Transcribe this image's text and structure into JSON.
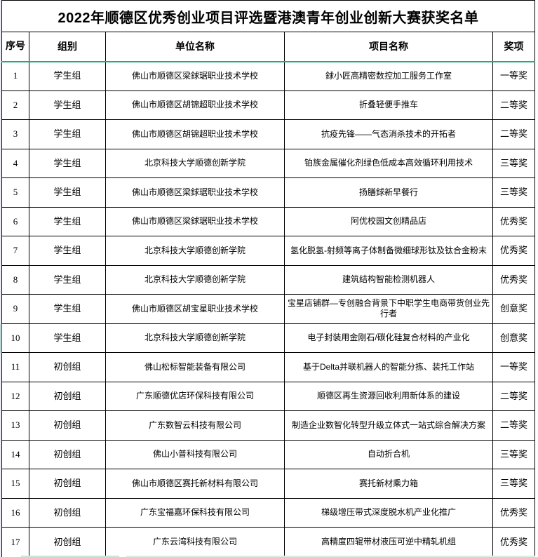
{
  "title": "2022年顺德区优秀创业项目评选暨港澳青年创业创新大赛获奖名单",
  "colors": {
    "freeze_line": "#25a87d",
    "border": "#000000"
  },
  "table": {
    "headers": {
      "no": "序号",
      "group": "组别",
      "unit": "单位名称",
      "project": "项目名称",
      "award": "奖项"
    },
    "rows": [
      {
        "no": "1",
        "group": "学生组",
        "unit": "佛山市顺德区梁銶琚职业技术学校",
        "project": "銶小匠高精密数控加工服务工作室",
        "award": "一等奖"
      },
      {
        "no": "2",
        "group": "学生组",
        "unit": "佛山市顺德区胡锦超职业技术学校",
        "project": "折叠轻便手推车",
        "award": "二等奖"
      },
      {
        "no": "3",
        "group": "学生组",
        "unit": "佛山市顺德区胡锦超职业技术学校",
        "project": "抗疫先锋——气态消杀技术的开拓者",
        "award": "二等奖"
      },
      {
        "no": "4",
        "group": "学生组",
        "unit": "北京科技大学顺德创新学院",
        "project": "铂族金属催化剂绿色低成本高效循环利用技术",
        "award": "三等奖"
      },
      {
        "no": "5",
        "group": "学生组",
        "unit": "佛山市顺德区梁銶琚职业技术学校",
        "project": "扬膳銶新早餐行",
        "award": "三等奖"
      },
      {
        "no": "6",
        "group": "学生组",
        "unit": "佛山市顺德区梁銶琚职业技术学校",
        "project": "阿优校园文创精品店",
        "award": "优秀奖"
      },
      {
        "no": "7",
        "group": "学生组",
        "unit": "北京科技大学顺德创新学院",
        "project": "氢化脱氢-射频等离子体制备微细球形钛及钛合金粉末",
        "award": "优秀奖"
      },
      {
        "no": "8",
        "group": "学生组",
        "unit": "北京科技大学顺德创新学院",
        "project": "建筑结构智能检测机器人",
        "award": "优秀奖"
      },
      {
        "no": "9",
        "group": "学生组",
        "unit": "佛山市顺德区胡宝星职业技术学校",
        "project": "宝星店铺群—专创融合背景下中职学生电商带货创业先行者",
        "award": "创意奖"
      },
      {
        "no": "10",
        "group": "学生组",
        "unit": "北京科技大学顺德创新学院",
        "project": "电子封装用金刚石/碳化硅复合材料的产业化",
        "award": "创意奖"
      },
      {
        "no": "11",
        "group": "初创组",
        "unit": "佛山松标智能装备有限公司",
        "project": "基于Delta并联机器人的智能分拣、装托工作站",
        "award": "一等奖"
      },
      {
        "no": "12",
        "group": "初创组",
        "unit": "广东顺德优店环保科技有限公司",
        "project": "顺德区再生资源回收利用新体系的建设",
        "award": "二等奖"
      },
      {
        "no": "13",
        "group": "初创组",
        "unit": "广东数智云科技有限公司",
        "project": "制造企业数智化转型升级立体式一站式综合解决方案",
        "award": "二等奖"
      },
      {
        "no": "14",
        "group": "初创组",
        "unit": "佛山小普科技有限公司",
        "project": "自动折合机",
        "award": "三等奖"
      },
      {
        "no": "15",
        "group": "初创组",
        "unit": "佛山市顺德区赛托新材料有限公司",
        "project": "赛托新材乘力箱",
        "award": "三等奖"
      },
      {
        "no": "16",
        "group": "初创组",
        "unit": "广东宝福嘉环保科技有限公司",
        "project": "梯级增压带式深度脱水机产业化推广",
        "award": "优秀奖"
      },
      {
        "no": "17",
        "group": "初创组",
        "unit": "广东云湾科技有限公司",
        "project": "高精度四辊带材液压可逆中精轧机组",
        "award": "优秀奖"
      }
    ]
  }
}
